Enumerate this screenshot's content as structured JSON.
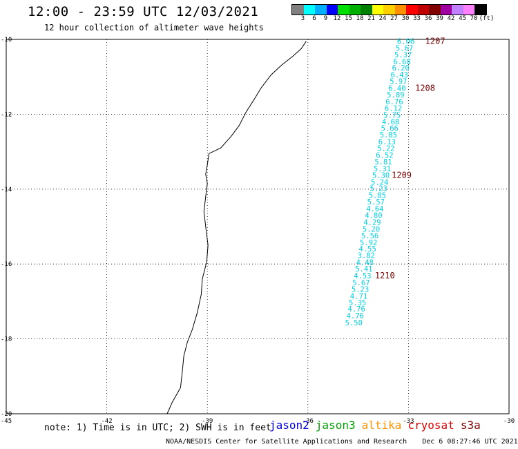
{
  "header": {
    "title": "12:00 - 23:59 UTC 12/03/2021",
    "subtitle": "12 hour collection of altimeter wave heights"
  },
  "colorbar": {
    "colors": [
      "#808080",
      "#00ffff",
      "#00b0ff",
      "#0000ff",
      "#00e000",
      "#00b000",
      "#008000",
      "#ffff00",
      "#ffd000",
      "#ff9000",
      "#ff0000",
      "#c00000",
      "#800000",
      "#a000a0",
      "#c080ff",
      "#ff80ff",
      "#000000"
    ],
    "ticks": [
      "3",
      "6",
      "9",
      "12",
      "15",
      "18",
      "21",
      "24",
      "27",
      "30",
      "33",
      "36",
      "39",
      "42",
      "45",
      "70",
      "(ft)"
    ]
  },
  "map": {
    "lon_range": [
      -45,
      -30
    ],
    "lat_range": [
      -20,
      -10
    ],
    "lon_ticks": [
      -45,
      -42,
      -39,
      -36,
      -33,
      -30
    ],
    "lat_ticks": [
      -10,
      -12,
      -14,
      -16,
      -18,
      -20
    ],
    "coastline": [
      [
        -36.05,
        -10.05
      ],
      [
        -36.2,
        -10.25
      ],
      [
        -36.45,
        -10.45
      ],
      [
        -36.8,
        -10.7
      ],
      [
        -37.1,
        -10.95
      ],
      [
        -37.4,
        -11.3
      ],
      [
        -37.6,
        -11.6
      ],
      [
        -37.85,
        -11.95
      ],
      [
        -38.05,
        -12.3
      ],
      [
        -38.3,
        -12.6
      ],
      [
        -38.6,
        -12.9
      ],
      [
        -38.95,
        -13.05
      ],
      [
        -39.0,
        -13.35
      ],
      [
        -39.05,
        -13.6
      ],
      [
        -39.0,
        -13.85
      ],
      [
        -39.05,
        -14.2
      ],
      [
        -39.1,
        -14.6
      ],
      [
        -39.05,
        -15.0
      ],
      [
        -38.98,
        -15.5
      ],
      [
        -39.02,
        -15.95
      ],
      [
        -39.15,
        -16.4
      ],
      [
        -39.18,
        -16.8
      ],
      [
        -39.3,
        -17.3
      ],
      [
        -39.45,
        -17.75
      ],
      [
        -39.6,
        -18.1
      ],
      [
        -39.7,
        -18.45
      ],
      [
        -39.75,
        -18.9
      ],
      [
        -39.8,
        -19.3
      ],
      [
        -40.05,
        -19.7
      ],
      [
        -40.2,
        -20.0
      ]
    ],
    "swh_points": [
      {
        "lon": -33.08,
        "lat": -10.05,
        "v": "6.06"
      },
      {
        "lon": -33.12,
        "lat": -10.23,
        "v": "5.67"
      },
      {
        "lon": -33.16,
        "lat": -10.41,
        "v": "5.37"
      },
      {
        "lon": -33.19,
        "lat": -10.59,
        "v": "6.68"
      },
      {
        "lon": -33.23,
        "lat": -10.76,
        "v": "6.20"
      },
      {
        "lon": -33.27,
        "lat": -10.94,
        "v": "6.43"
      },
      {
        "lon": -33.3,
        "lat": -11.12,
        "v": "5.97"
      },
      {
        "lon": -33.34,
        "lat": -11.3,
        "v": "6.40"
      },
      {
        "lon": -33.38,
        "lat": -11.48,
        "v": "5.89"
      },
      {
        "lon": -33.42,
        "lat": -11.66,
        "v": "6.76"
      },
      {
        "lon": -33.45,
        "lat": -11.84,
        "v": "6.12"
      },
      {
        "lon": -33.49,
        "lat": -12.02,
        "v": "5.75"
      },
      {
        "lon": -33.53,
        "lat": -12.2,
        "v": "4.68"
      },
      {
        "lon": -33.56,
        "lat": -12.37,
        "v": "5.66"
      },
      {
        "lon": -33.6,
        "lat": -12.55,
        "v": "5.85"
      },
      {
        "lon": -33.64,
        "lat": -12.73,
        "v": "6.13"
      },
      {
        "lon": -33.67,
        "lat": -12.91,
        "v": "5.22"
      },
      {
        "lon": -33.71,
        "lat": -13.09,
        "v": "6.52"
      },
      {
        "lon": -33.75,
        "lat": -13.27,
        "v": "5.81"
      },
      {
        "lon": -33.78,
        "lat": -13.45,
        "v": "5.31"
      },
      {
        "lon": -33.82,
        "lat": -13.63,
        "v": "5.30"
      },
      {
        "lon": -33.86,
        "lat": -13.81,
        "v": "5.24"
      },
      {
        "lon": -33.89,
        "lat": -13.98,
        "v": "5.23"
      },
      {
        "lon": -33.93,
        "lat": -14.16,
        "v": "5.85"
      },
      {
        "lon": -33.97,
        "lat": -14.34,
        "v": "5.57"
      },
      {
        "lon": -34.0,
        "lat": -14.52,
        "v": "4.64"
      },
      {
        "lon": -34.04,
        "lat": -14.7,
        "v": "4.80"
      },
      {
        "lon": -34.08,
        "lat": -14.88,
        "v": "4.29"
      },
      {
        "lon": -34.11,
        "lat": -15.06,
        "v": "5.20"
      },
      {
        "lon": -34.15,
        "lat": -15.24,
        "v": "5.56"
      },
      {
        "lon": -34.19,
        "lat": -15.42,
        "v": "5.92"
      },
      {
        "lon": -34.22,
        "lat": -15.59,
        "v": "4.55"
      },
      {
        "lon": -34.26,
        "lat": -15.77,
        "v": "3.82"
      },
      {
        "lon": -34.3,
        "lat": -15.95,
        "v": "4.48"
      },
      {
        "lon": -34.33,
        "lat": -16.13,
        "v": "5.41"
      },
      {
        "lon": -34.37,
        "lat": -16.31,
        "v": "4.53"
      },
      {
        "lon": -34.41,
        "lat": -16.49,
        "v": "5.67"
      },
      {
        "lon": -34.44,
        "lat": -16.67,
        "v": "5.23"
      },
      {
        "lon": -34.48,
        "lat": -16.85,
        "v": "4.71"
      },
      {
        "lon": -34.52,
        "lat": -17.03,
        "v": "5.35"
      },
      {
        "lon": -34.55,
        "lat": -17.2,
        "v": "4.76"
      },
      {
        "lon": -34.59,
        "lat": -17.38,
        "v": "4.76"
      },
      {
        "lon": -34.63,
        "lat": -17.56,
        "v": "5.50"
      }
    ],
    "time_labels": [
      {
        "lon": -32.5,
        "lat": -10.05,
        "v": "1207"
      },
      {
        "lon": -32.8,
        "lat": -11.3,
        "v": "1208"
      },
      {
        "lon": -33.5,
        "lat": -13.63,
        "v": "1209"
      },
      {
        "lon": -34.0,
        "lat": -16.31,
        "v": "1210"
      }
    ]
  },
  "footer": {
    "note": "note: 1) Time is in UTC; 2) SWH is in feet",
    "satellites": [
      {
        "name": "jason2",
        "color": "#0000e0"
      },
      {
        "name": "jason3",
        "color": "#00a000"
      },
      {
        "name": "altika",
        "color": "#ff9000"
      },
      {
        "name": "cryosat",
        "color": "#e00000"
      },
      {
        "name": "s3a",
        "color": "#800000"
      }
    ],
    "credit": "NOAA/NESDIS Center for Satellite Applications and Research",
    "timestamp": "Dec  6 08:27:46 UTC 2021"
  }
}
